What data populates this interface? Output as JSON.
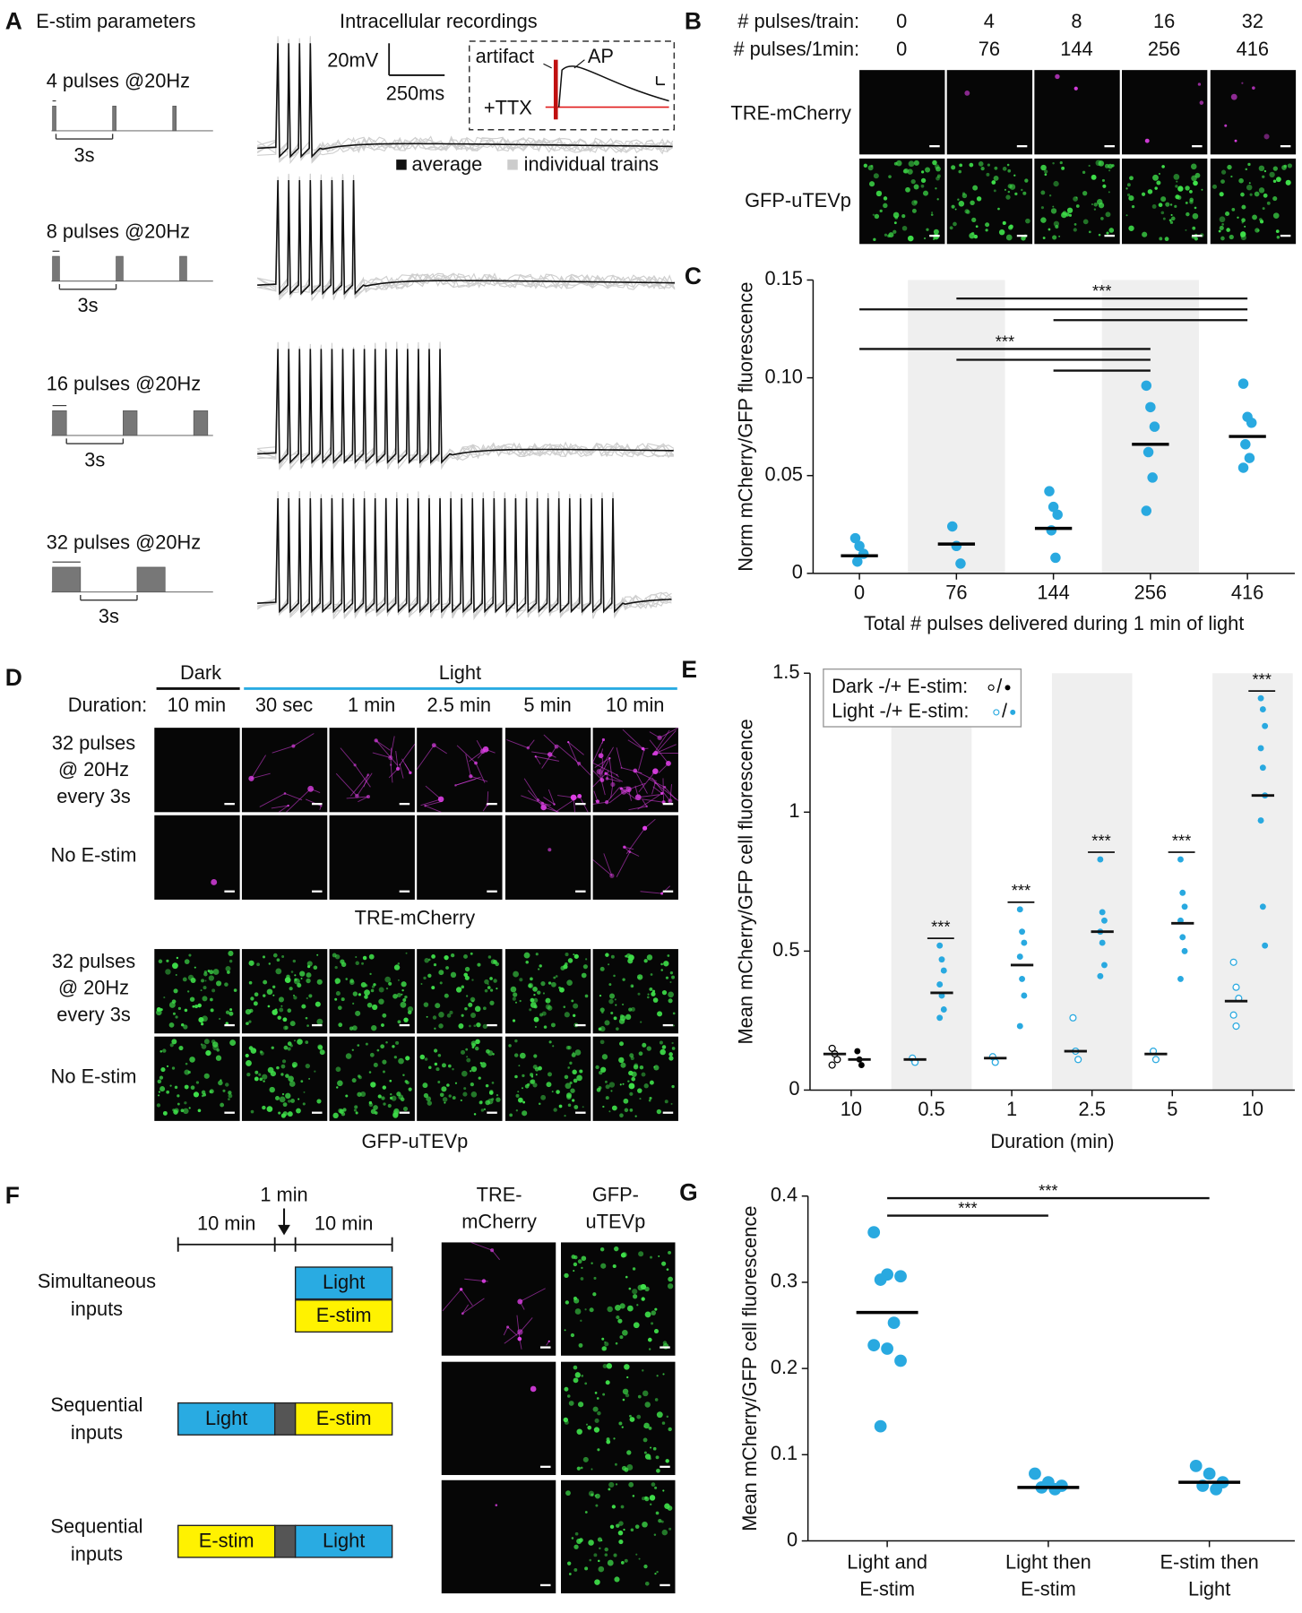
{
  "panel_a": {
    "letter": "A",
    "title": "E-stim parameters",
    "recordings_title": "Intracellular recordings",
    "trains": [
      {
        "label": "4 pulses @20Hz",
        "pulses": 4,
        "interval": "3s"
      },
      {
        "label": "8 pulses @20Hz",
        "pulses": 8,
        "interval": "3s"
      },
      {
        "label": "16 pulses @20Hz",
        "pulses": 16,
        "interval": "3s"
      },
      {
        "label": "32 pulses @20Hz",
        "pulses": 32,
        "interval": "3s"
      }
    ],
    "scale_bar": {
      "voltage": "20mV",
      "time": "250ms"
    },
    "inset": {
      "artifact": "artifact",
      "ap": "AP",
      "ttx": "+TTX"
    },
    "legend": [
      "average",
      "individual trains"
    ]
  },
  "panel_b": {
    "letter": "B",
    "row_labels": [
      "# pulses/train:",
      "# pulses/1min:"
    ],
    "pulses_per_train": [
      0,
      4,
      8,
      16,
      32
    ],
    "pulses_per_min": [
      0,
      76,
      144,
      256,
      416
    ],
    "image_rows": [
      "TRE-mCherry",
      "GFP-uTEVp"
    ]
  },
  "panel_d": {
    "letter": "D",
    "dark": "Dark",
    "light": "Light",
    "duration_label": "Duration:",
    "durations": [
      "10 min",
      "30 sec",
      "1 min",
      "2.5 min",
      "5 min",
      "10 min"
    ],
    "conditions": [
      [
        "32 pulses",
        "@ 20Hz",
        "every 3s"
      ],
      [
        "No E-stim"
      ]
    ],
    "image_rows": [
      "TRE-mCherry",
      "GFP-uTEVp"
    ]
  },
  "panel_f": {
    "letter": "F",
    "timeline": [
      "10 min",
      "1 min",
      "10 min"
    ],
    "conditions": [
      [
        "Simultaneous",
        "inputs"
      ],
      [
        "Sequential",
        "inputs"
      ],
      [
        "Sequential",
        "inputs"
      ]
    ],
    "light": "Light",
    "estim": "E-stim",
    "image_columns": [
      [
        "TRE-",
        "mCherry"
      ],
      [
        "GFP-",
        "uTEVp"
      ]
    ]
  },
  "chart_data": [
    {
      "panel": "C",
      "type": "dotplot",
      "categories": [
        "0",
        "76",
        "144",
        "256",
        "416"
      ],
      "values": [
        [
          0.018,
          0.014,
          0.01,
          0.006
        ],
        [
          0.024,
          0.014,
          0.005
        ],
        [
          0.042,
          0.034,
          0.03,
          0.022,
          0.008
        ],
        [
          0.096,
          0.085,
          0.075,
          0.062,
          0.049,
          0.032
        ],
        [
          0.097,
          0.08,
          0.077,
          0.066,
          0.059,
          0.054
        ]
      ],
      "means": [
        0.009,
        0.015,
        0.023,
        0.066,
        0.07
      ],
      "color": "#29a9e0",
      "mean_color": "#000000",
      "ylim": [
        0,
        0.15
      ],
      "yticks": [
        0,
        0.05,
        {
          "value": 0.1,
          "label": "0.10"
        },
        0.15
      ],
      "xlabel": "Total # pulses delivered during 1 min of light",
      "ylabel": "Norm mCherry/GFP fluorescence",
      "shaded": [
        1,
        3
      ],
      "significance": [
        {
          "label": "***",
          "pairs": [
            [
              1,
              4
            ],
            [
              0,
              4
            ],
            [
              2,
              4
            ]
          ]
        },
        {
          "label": "***",
          "pairs": [
            [
              0,
              3
            ],
            [
              1,
              3
            ],
            [
              2,
              3
            ]
          ]
        }
      ]
    },
    {
      "panel": "E",
      "type": "paired_dotplot",
      "categories": [
        "10",
        "0.5",
        "1",
        "2.5",
        "5",
        "10"
      ],
      "category_colors": [
        "#000000",
        "#29a9e0",
        "#29a9e0",
        "#29a9e0",
        "#29a9e0",
        "#29a9e0"
      ],
      "groups": [
        {
          "without": [
            0.15,
            0.13,
            0.11,
            0.09
          ],
          "without_mean": 0.13,
          "with": [
            0.14,
            0.11,
            0.09
          ],
          "with_mean": 0.11
        },
        {
          "without": [
            0.115,
            0.1
          ],
          "without_mean": 0.11,
          "with": [
            0.52,
            0.47,
            0.43,
            0.38,
            0.34,
            0.29,
            0.26
          ],
          "with_mean": 0.35
        },
        {
          "without": [
            0.12,
            0.1
          ],
          "without_mean": 0.115,
          "with": [
            0.65,
            0.57,
            0.53,
            0.48,
            0.4,
            0.34,
            0.23
          ],
          "with_mean": 0.45
        },
        {
          "without": [
            0.26,
            0.14,
            0.11
          ],
          "without_mean": 0.14,
          "with": [
            0.83,
            0.64,
            0.61,
            0.57,
            0.53,
            0.45,
            0.41
          ],
          "with_mean": 0.57
        },
        {
          "without": [
            0.14,
            0.11
          ],
          "without_mean": 0.13,
          "with": [
            0.83,
            0.71,
            0.66,
            0.61,
            0.55,
            0.5,
            0.4
          ],
          "with_mean": 0.6
        },
        {
          "without": [
            0.46,
            0.37,
            0.33,
            0.27,
            0.23
          ],
          "without_mean": 0.32,
          "with": [
            1.41,
            1.37,
            1.31,
            1.23,
            1.16,
            1.06,
            0.97,
            0.66,
            0.52
          ],
          "with_mean": 1.06
        }
      ],
      "significance": [
        null,
        "***",
        "***",
        "***",
        "***",
        "***"
      ],
      "legend": [
        {
          "label": "Dark -/+ E-stim:",
          "color": "#000000"
        },
        {
          "label": "Light -/+ E-stim:",
          "color": "#29a9e0"
        }
      ],
      "legend_separator": "/",
      "ylim": [
        0,
        1.5
      ],
      "yticks": [
        0,
        0.5,
        1,
        1.5
      ],
      "xlabel": "Duration (min)",
      "ylabel": "Mean mCherry/GFP cell fluorescence",
      "shaded": [
        1,
        3,
        5
      ]
    },
    {
      "panel": "G",
      "type": "dotplot",
      "categories": [
        [
          "Light and",
          "E-stim"
        ],
        [
          "Light then",
          "E-stim"
        ],
        [
          "E-stim then",
          "Light"
        ]
      ],
      "values": [
        [
          0.358,
          0.309,
          0.307,
          0.303,
          0.253,
          0.227,
          0.223,
          0.209,
          0.133
        ],
        [
          0.078,
          0.068,
          0.064,
          0.062,
          0.06
        ],
        [
          0.087,
          0.078,
          0.068,
          0.064,
          0.06
        ]
      ],
      "means": [
        0.265,
        0.062,
        0.068
      ],
      "color": "#29a9e0",
      "mean_color": "#000000",
      "ylim": [
        0,
        0.4
      ],
      "yticks": [
        0,
        0.1,
        0.2,
        0.3,
        0.4
      ],
      "ylabel": "Mean mCherry/GFP cell fluorescence",
      "shaded": [],
      "significance": [
        {
          "label": "***",
          "pairs": [
            [
              0,
              2
            ]
          ]
        },
        {
          "label": "***",
          "pairs": [
            [
              0,
              1
            ]
          ]
        }
      ]
    }
  ]
}
